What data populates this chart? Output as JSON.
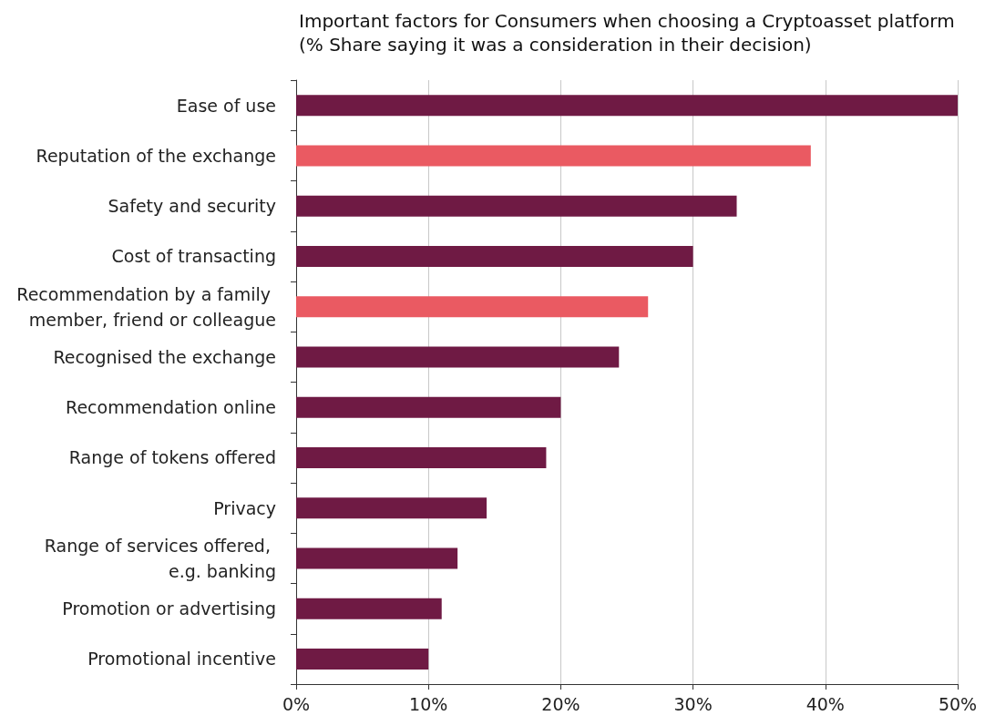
{
  "chart_data": {
    "type": "bar",
    "orientation": "horizontal",
    "title": "Important factors for Consumers when choosing a Cryptoasset platform",
    "subtitle": "(% Share saying it was a consideration in their decision)",
    "categories": [
      "Ease of use",
      "Reputation of the exchange",
      "Safety and security",
      "Cost of transacting",
      "Recommendation by a family member, friend or colleague",
      "Recognised the exchange",
      "Recommendation online",
      "Range of tokens offered",
      "Privacy",
      "Range of services offered, e.g. banking",
      "Promotion or advertising",
      "Promotional incentive"
    ],
    "values": [
      50,
      38.9,
      33.3,
      30,
      26.6,
      24.4,
      20,
      18.9,
      14.4,
      12.2,
      11,
      10
    ],
    "colors": [
      "#6f1a44",
      "#ea5a62",
      "#6f1a44",
      "#6f1a44",
      "#ea5a62",
      "#6f1a44",
      "#6f1a44",
      "#6f1a44",
      "#6f1a44",
      "#6f1a44",
      "#6f1a44",
      "#6f1a44"
    ],
    "xlim": [
      0,
      50
    ],
    "xticks": [
      {
        "value": 0,
        "label": "0%"
      },
      {
        "value": 10,
        "label": "10%"
      },
      {
        "value": 20,
        "label": "20%"
      },
      {
        "value": 30,
        "label": "30%"
      },
      {
        "value": 40,
        "label": "40%"
      },
      {
        "value": 50,
        "label": "50%"
      }
    ],
    "grid": "x"
  }
}
